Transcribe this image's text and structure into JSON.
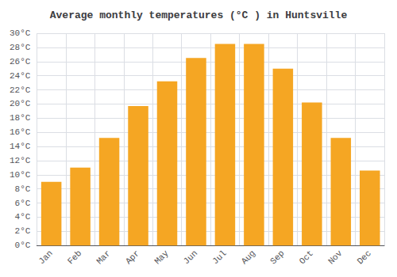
{
  "chart_data": {
    "type": "bar",
    "title": "Average monthly temperatures (°C ) in Huntsville",
    "categories": [
      "Jan",
      "Feb",
      "Mar",
      "Apr",
      "May",
      "Jun",
      "Jul",
      "Aug",
      "Sep",
      "Oct",
      "Nov",
      "Dec"
    ],
    "values": [
      9.0,
      11.0,
      15.2,
      19.7,
      23.2,
      26.5,
      28.5,
      28.5,
      25.0,
      20.2,
      15.2,
      10.6
    ],
    "color": "#F5A623",
    "ylim": [
      0,
      30
    ],
    "yticks": [
      {
        "value": 0,
        "label": "0°C"
      },
      {
        "value": 2,
        "label": "2°C"
      },
      {
        "value": 4,
        "label": "4°C"
      },
      {
        "value": 6,
        "label": "6°C"
      },
      {
        "value": 8,
        "label": "8°C"
      },
      {
        "value": 10,
        "label": "10°C"
      },
      {
        "value": 12,
        "label": "12°C"
      },
      {
        "value": 14,
        "label": "14°C"
      },
      {
        "value": 16,
        "label": "16°C"
      },
      {
        "value": 18,
        "label": "18°C"
      },
      {
        "value": 20,
        "label": "20°C"
      },
      {
        "value": 22,
        "label": "22°C"
      },
      {
        "value": 24,
        "label": "24°C"
      },
      {
        "value": 26,
        "label": "26°C"
      },
      {
        "value": 28,
        "label": "28°C"
      },
      {
        "value": 30,
        "label": "30°C"
      }
    ],
    "grid": true
  }
}
